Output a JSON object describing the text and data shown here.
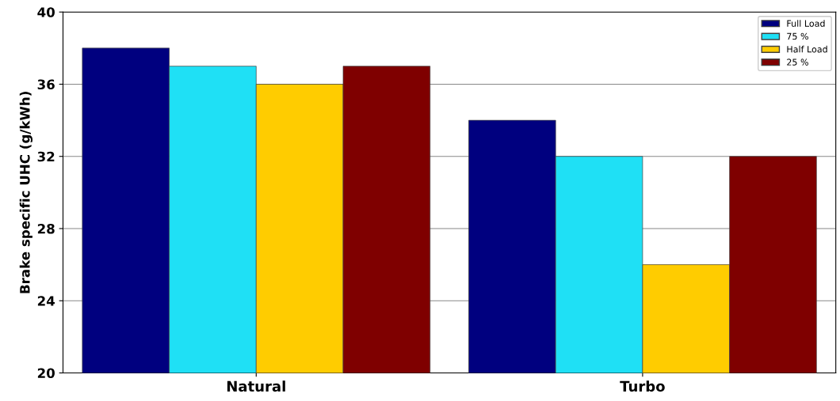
{
  "chart_data": {
    "type": "bar",
    "ylabel": "Brake specific UHC (g/kWh)",
    "categories": [
      "Natural",
      "Turbo"
    ],
    "series": [
      {
        "name": "Full Load",
        "color": "#00007f",
        "values": [
          38,
          34
        ]
      },
      {
        "name": "75 %",
        "color": "#1fe0f5",
        "values": [
          37,
          32
        ]
      },
      {
        "name": "Half Load",
        "color": "#ffcc00",
        "values": [
          36,
          26
        ]
      },
      {
        "name": "25 %",
        "color": "#7f0000",
        "values": [
          37,
          32
        ]
      }
    ],
    "ylim": [
      20,
      40
    ],
    "yticks": [
      20,
      24,
      28,
      32,
      36,
      40
    ],
    "grid": "y",
    "legend": "top right"
  }
}
